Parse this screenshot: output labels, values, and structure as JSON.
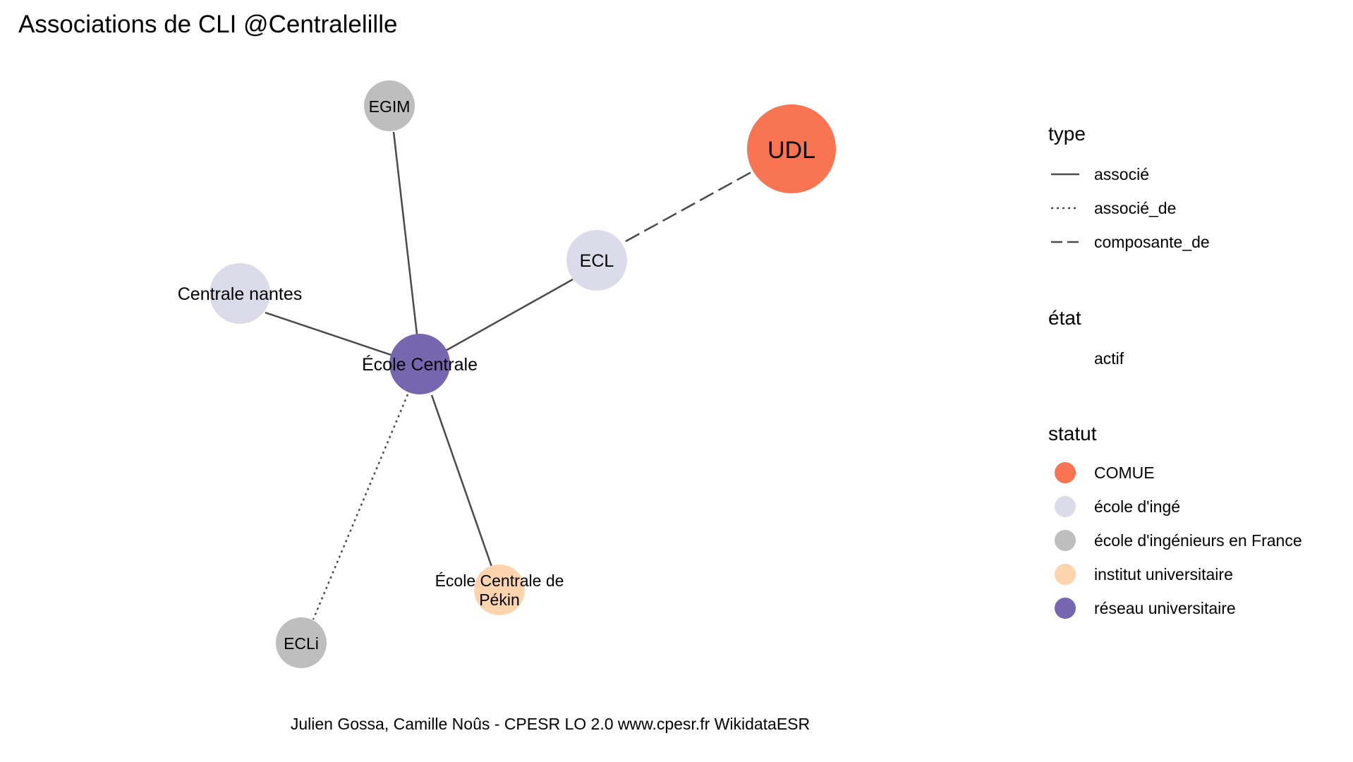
{
  "title": "Associations de CLI @Centralelille",
  "caption": "Julien Gossa, Camille Noûs - CPESR LO 2.0 www.cpesr.fr WikidataESR",
  "colors": {
    "COMUE": "#F97452",
    "ecole_inge": "#DCDBEA",
    "ecole_inge_france": "#BEBEBE",
    "institut": "#FDD4AE",
    "reseau": "#7566AF",
    "edge": "#4A4A4A"
  },
  "nodes": [
    {
      "id": "udl",
      "label": "UDL",
      "statut": "COMUE"
    },
    {
      "id": "egim",
      "label": "EGIM",
      "statut": "école d'ingénieurs en France"
    },
    {
      "id": "ecl",
      "label": "ECL",
      "statut": "école d'ingé"
    },
    {
      "id": "nantes",
      "label": "Centrale nantes",
      "statut": "école d'ingé"
    },
    {
      "id": "centrale",
      "label": "École Centrale",
      "statut": "réseau universitaire"
    },
    {
      "id": "pekin",
      "label": "École Centrale de Pékin",
      "label_lines": [
        "École Centrale de",
        "Pékin"
      ],
      "statut": "institut universitaire"
    },
    {
      "id": "ecli",
      "label": "ECLi",
      "statut": "école d'ingénieurs en France"
    }
  ],
  "edges": [
    {
      "from": "centrale",
      "to": "egim",
      "type": "associé"
    },
    {
      "from": "centrale",
      "to": "nantes",
      "type": "associé"
    },
    {
      "from": "centrale",
      "to": "ecl",
      "type": "associé"
    },
    {
      "from": "ecl",
      "to": "udl",
      "type": "composante_de"
    },
    {
      "from": "centrale",
      "to": "ecli",
      "type": "associé_de"
    },
    {
      "from": "centrale",
      "to": "pekin",
      "type": "associé"
    }
  ],
  "legend": {
    "type": {
      "title": "type",
      "items": [
        "associé",
        "associé_de",
        "composante_de"
      ]
    },
    "etat": {
      "title": "état",
      "items": [
        "actif"
      ]
    },
    "statut": {
      "title": "statut",
      "items": [
        "COMUE",
        "école d'ingé",
        "école d'ingénieurs en France",
        "institut universitaire",
        "réseau universitaire"
      ]
    }
  }
}
